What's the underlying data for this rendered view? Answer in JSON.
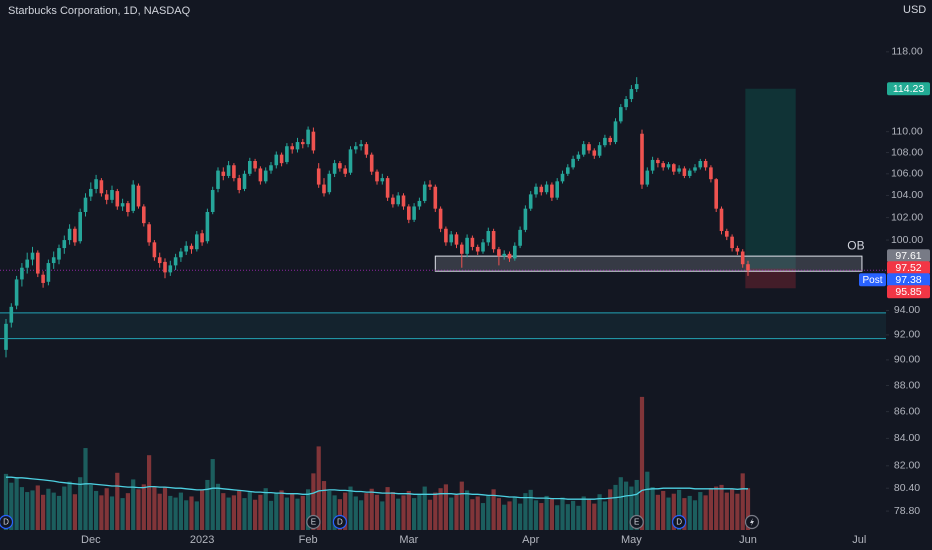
{
  "chart_data": {
    "type": "candlestick",
    "title": "Starbucks Corporation, 1D, NASDAQ",
    "currency": "USD",
    "log_scale": true,
    "ylim": [
      77.5,
      123.5
    ],
    "yticks": [
      {
        "value": 78.8,
        "label": "78.80"
      },
      {
        "value": 80.4,
        "label": "80.40"
      },
      {
        "value": 82,
        "label": "82.00"
      },
      {
        "value": 84,
        "label": "84.00"
      },
      {
        "value": 86,
        "label": "86.00"
      },
      {
        "value": 88,
        "label": "88.00"
      },
      {
        "value": 90,
        "label": "90.00"
      },
      {
        "value": 92,
        "label": "92.00"
      },
      {
        "value": 94,
        "label": "94.00"
      },
      {
        "value": 100,
        "label": "100.00"
      },
      {
        "value": 102,
        "label": "102.00"
      },
      {
        "value": 104,
        "label": "104.00"
      },
      {
        "value": 106,
        "label": "106.00"
      },
      {
        "value": 108,
        "label": "108.00"
      },
      {
        "value": 110,
        "label": "110.00"
      },
      {
        "value": 118,
        "label": "118.00"
      }
    ],
    "up_color": "#26a69a",
    "down_color": "#ef5350",
    "categories": [
      null,
      null,
      null,
      null,
      null,
      null,
      null,
      null,
      null,
      null,
      null,
      null,
      null,
      null,
      null,
      null,
      "Dec",
      null,
      null,
      null,
      null,
      null,
      null,
      null,
      null,
      null,
      null,
      null,
      null,
      null,
      null,
      null,
      null,
      null,
      null,
      null,
      null,
      "2023",
      null,
      null,
      null,
      null,
      null,
      null,
      null,
      null,
      null,
      null,
      null,
      null,
      null,
      null,
      null,
      null,
      null,
      null,
      null,
      "Feb",
      null,
      null,
      null,
      null,
      null,
      null,
      null,
      null,
      null,
      null,
      null,
      null,
      null,
      null,
      null,
      null,
      null,
      null,
      "Mar",
      null,
      null,
      null,
      null,
      null,
      null,
      null,
      null,
      null,
      null,
      null,
      null,
      null,
      null,
      null,
      null,
      null,
      null,
      null,
      null,
      null,
      null,
      "Apr",
      null,
      null,
      null,
      null,
      null,
      null,
      null,
      null,
      null,
      null,
      null,
      null,
      null,
      null,
      null,
      null,
      null,
      null,
      "May",
      null,
      null,
      null,
      null,
      null,
      null,
      null,
      null,
      null,
      null,
      null,
      null,
      null,
      null,
      null,
      null,
      null,
      null,
      null,
      null,
      null,
      "Jun",
      null,
      null,
      null,
      null,
      null,
      null,
      null,
      null,
      null,
      null,
      null,
      null,
      null,
      null,
      null,
      null,
      null,
      null,
      null,
      null,
      "Jul",
      null,
      null,
      null,
      null
    ],
    "ohlc": [
      [
        90.8,
        93.3,
        90.2,
        92.9
      ],
      [
        93.0,
        94.6,
        92.6,
        94.3
      ],
      [
        94.4,
        96.9,
        94.1,
        96.6
      ],
      [
        96.6,
        98.0,
        96.0,
        97.6
      ],
      [
        97.6,
        98.9,
        97.1,
        98.3
      ],
      [
        98.3,
        99.4,
        97.8,
        98.9
      ],
      [
        98.9,
        99.1,
        96.8,
        97.1
      ],
      [
        97.0,
        97.3,
        95.9,
        96.3
      ],
      [
        96.4,
        98.3,
        96.1,
        98.0
      ],
      [
        98.0,
        99.0,
        97.5,
        98.5
      ],
      [
        98.3,
        99.6,
        97.9,
        99.3
      ],
      [
        99.3,
        100.4,
        98.8,
        100.0
      ],
      [
        100.0,
        101.4,
        99.6,
        101.0
      ],
      [
        101.0,
        101.2,
        99.5,
        99.8
      ],
      [
        99.9,
        102.8,
        99.7,
        102.5
      ],
      [
        102.5,
        104.2,
        102.1,
        103.8
      ],
      [
        103.9,
        105.2,
        103.5,
        104.6
      ],
      [
        104.6,
        105.9,
        104.2,
        105.5
      ],
      [
        105.4,
        105.6,
        103.9,
        104.2
      ],
      [
        104.1,
        104.5,
        103.2,
        103.6
      ],
      [
        103.6,
        104.9,
        103.3,
        104.5
      ],
      [
        104.4,
        104.6,
        102.7,
        103.0
      ],
      [
        103.0,
        103.7,
        102.6,
        103.3
      ],
      [
        103.3,
        103.5,
        102.1,
        102.5
      ],
      [
        102.6,
        105.4,
        102.4,
        105.0
      ],
      [
        104.9,
        105.1,
        102.8,
        103.0
      ],
      [
        103.0,
        103.2,
        101.2,
        101.5
      ],
      [
        101.4,
        101.6,
        99.5,
        99.8
      ],
      [
        99.8,
        100.0,
        98.2,
        98.5
      ],
      [
        98.5,
        98.9,
        97.6,
        98.0
      ],
      [
        98.1,
        98.4,
        96.7,
        97.2
      ],
      [
        97.2,
        98.2,
        96.9,
        97.8
      ],
      [
        97.8,
        98.8,
        97.4,
        98.5
      ],
      [
        98.5,
        99.3,
        98.1,
        99.0
      ],
      [
        99.0,
        99.9,
        98.7,
        99.5
      ],
      [
        99.5,
        99.7,
        98.8,
        99.2
      ],
      [
        99.2,
        100.8,
        99.0,
        100.5
      ],
      [
        100.6,
        100.9,
        99.5,
        99.8
      ],
      [
        99.9,
        102.8,
        99.7,
        102.5
      ],
      [
        102.5,
        104.8,
        102.3,
        104.5
      ],
      [
        104.6,
        106.6,
        104.3,
        106.3
      ],
      [
        106.2,
        106.6,
        105.4,
        105.8
      ],
      [
        105.8,
        107.2,
        105.6,
        106.8
      ],
      [
        106.8,
        107.0,
        105.3,
        105.6
      ],
      [
        105.6,
        105.9,
        104.2,
        104.5
      ],
      [
        104.6,
        106.3,
        104.4,
        106.0
      ],
      [
        106.0,
        107.5,
        105.8,
        107.2
      ],
      [
        107.2,
        107.4,
        106.2,
        106.5
      ],
      [
        106.5,
        106.7,
        105.0,
        105.3
      ],
      [
        105.3,
        106.6,
        105.1,
        106.3
      ],
      [
        106.3,
        107.1,
        106.0,
        106.8
      ],
      [
        106.8,
        108.1,
        106.5,
        107.8
      ],
      [
        107.8,
        108.0,
        106.7,
        107.0
      ],
      [
        107.1,
        108.9,
        106.9,
        108.6
      ],
      [
        108.6,
        108.9,
        107.9,
        108.3
      ],
      [
        108.3,
        109.4,
        108.0,
        109.0
      ],
      [
        109.0,
        109.3,
        108.4,
        108.8
      ],
      [
        108.8,
        110.5,
        108.5,
        110.2
      ],
      [
        110.0,
        110.4,
        107.9,
        108.2
      ],
      [
        106.5,
        107.0,
        104.7,
        105.0
      ],
      [
        105.0,
        105.6,
        103.9,
        104.2
      ],
      [
        104.3,
        106.3,
        104.1,
        106.0
      ],
      [
        106.0,
        107.3,
        105.7,
        107.0
      ],
      [
        107.0,
        107.2,
        106.2,
        106.5
      ],
      [
        106.5,
        106.8,
        105.7,
        106.0
      ],
      [
        106.1,
        108.6,
        105.9,
        108.3
      ],
      [
        108.3,
        109.0,
        107.9,
        108.6
      ],
      [
        108.6,
        109.2,
        108.2,
        108.8
      ],
      [
        108.8,
        109.0,
        107.5,
        107.8
      ],
      [
        107.8,
        108.0,
        105.9,
        106.2
      ],
      [
        106.2,
        106.4,
        105.0,
        105.3
      ],
      [
        105.3,
        106.0,
        105.0,
        105.6
      ],
      [
        105.6,
        105.8,
        103.5,
        103.8
      ],
      [
        103.8,
        104.1,
        102.9,
        103.2
      ],
      [
        103.2,
        104.3,
        103.0,
        104.0
      ],
      [
        104.0,
        104.2,
        102.7,
        103.0
      ],
      [
        103.0,
        103.2,
        101.5,
        101.8
      ],
      [
        101.8,
        103.3,
        101.6,
        103.0
      ],
      [
        103.0,
        103.8,
        102.7,
        103.5
      ],
      [
        103.5,
        105.3,
        103.3,
        105.0
      ],
      [
        105.0,
        105.4,
        104.5,
        104.8
      ],
      [
        104.8,
        105.0,
        102.5,
        102.8
      ],
      [
        102.8,
        103.0,
        100.7,
        101.0
      ],
      [
        101.0,
        101.2,
        99.5,
        99.8
      ],
      [
        99.8,
        100.8,
        99.5,
        100.5
      ],
      [
        100.5,
        100.7,
        99.3,
        99.6
      ],
      [
        99.6,
        99.8,
        97.6,
        98.8
      ],
      [
        98.8,
        100.5,
        98.5,
        100.2
      ],
      [
        100.2,
        100.4,
        99.1,
        99.4
      ],
      [
        99.4,
        99.6,
        98.7,
        99.0
      ],
      [
        99.0,
        100.1,
        98.8,
        99.8
      ],
      [
        99.8,
        101.1,
        99.5,
        100.8
      ],
      [
        100.8,
        101.0,
        98.9,
        99.2
      ],
      [
        99.2,
        99.4,
        97.8,
        98.6
      ],
      [
        98.6,
        99.1,
        98.3,
        98.8
      ],
      [
        98.8,
        99.0,
        98.1,
        98.4
      ],
      [
        98.4,
        99.8,
        98.2,
        99.5
      ],
      [
        99.5,
        101.2,
        99.3,
        100.9
      ],
      [
        100.9,
        103.1,
        100.7,
        102.8
      ],
      [
        102.8,
        104.4,
        102.6,
        104.1
      ],
      [
        104.1,
        105.1,
        103.8,
        104.8
      ],
      [
        104.8,
        105.0,
        104.0,
        104.3
      ],
      [
        104.3,
        105.3,
        104.1,
        105.0
      ],
      [
        105.0,
        105.2,
        103.5,
        103.8
      ],
      [
        103.8,
        105.6,
        103.6,
        105.3
      ],
      [
        105.3,
        106.3,
        105.1,
        106.0
      ],
      [
        106.0,
        106.9,
        105.8,
        106.6
      ],
      [
        106.6,
        107.7,
        106.4,
        107.4
      ],
      [
        107.4,
        108.1,
        107.2,
        107.8
      ],
      [
        107.8,
        109.1,
        107.6,
        108.8
      ],
      [
        108.8,
        109.0,
        107.9,
        108.2
      ],
      [
        108.2,
        108.4,
        107.4,
        107.7
      ],
      [
        107.7,
        109.0,
        107.5,
        108.7
      ],
      [
        108.7,
        109.7,
        108.5,
        109.4
      ],
      [
        109.4,
        109.6,
        108.7,
        109.0
      ],
      [
        109.0,
        111.3,
        108.8,
        111.0
      ],
      [
        111.0,
        112.7,
        110.8,
        112.4
      ],
      [
        112.4,
        113.5,
        112.1,
        113.2
      ],
      [
        113.2,
        114.6,
        112.9,
        114.2
      ],
      [
        114.2,
        115.4,
        113.9,
        114.7
      ],
      [
        109.8,
        110.2,
        104.6,
        105.0
      ],
      [
        105.0,
        106.6,
        104.8,
        106.3
      ],
      [
        106.3,
        107.6,
        106.0,
        107.3
      ],
      [
        107.3,
        107.5,
        106.6,
        107.0
      ],
      [
        107.0,
        107.2,
        106.3,
        106.6
      ],
      [
        106.6,
        107.1,
        106.4,
        106.9
      ],
      [
        106.9,
        107.0,
        105.9,
        106.2
      ],
      [
        106.2,
        106.8,
        106.0,
        106.5
      ],
      [
        106.5,
        106.7,
        105.6,
        105.8
      ],
      [
        105.8,
        106.5,
        105.6,
        106.3
      ],
      [
        106.3,
        106.9,
        106.1,
        106.6
      ],
      [
        106.6,
        107.4,
        106.4,
        107.2
      ],
      [
        107.2,
        107.4,
        106.3,
        106.6
      ],
      [
        106.6,
        106.8,
        105.2,
        105.5
      ],
      [
        105.5,
        105.6,
        102.5,
        102.8
      ],
      [
        102.8,
        103.0,
        100.5,
        100.8
      ],
      [
        100.8,
        101.0,
        100.0,
        100.3
      ],
      [
        100.3,
        100.5,
        99.0,
        99.3
      ],
      [
        99.3,
        99.5,
        98.7,
        99.0
      ],
      [
        99.0,
        99.2,
        97.6,
        97.9
      ],
      [
        97.9,
        98.2,
        96.9,
        97.38
      ],
      null,
      null,
      null,
      null,
      null,
      null,
      null,
      null,
      null,
      null,
      null,
      null,
      null,
      null,
      null,
      null,
      null,
      null,
      null,
      null,
      null,
      null,
      null,
      null,
      null
    ],
    "volume_ylim": [
      0,
      40
    ],
    "volume": [
      10.2,
      8.6,
      9.4,
      7.8,
      6.9,
      7.2,
      8.1,
      6.4,
      7.5,
      6.8,
      6.2,
      7.9,
      8.8,
      6.5,
      9.6,
      14.9,
      8.2,
      7.1,
      6.3,
      7.6,
      6.1,
      10.4,
      5.8,
      6.7,
      9.2,
      7.4,
      8.3,
      13.6,
      7.9,
      6.6,
      7.8,
      6.2,
      5.9,
      6.8,
      5.4,
      6.1,
      5.2,
      7.3,
      9.1,
      12.9,
      8.4,
      6.7,
      5.9,
      6.3,
      7.2,
      5.8,
      6.9,
      5.5,
      6.4,
      7.6,
      5.3,
      6.8,
      7.2,
      5.9,
      6.6,
      5.7,
      6.2,
      7.4,
      10.3,
      15.2,
      8.9,
      7.1,
      6.3,
      5.6,
      6.8,
      7.9,
      6.1,
      5.4,
      6.7,
      7.5,
      6.4,
      5.2,
      7.8,
      6.9,
      5.7,
      6.3,
      7.1,
      5.8,
      6.5,
      7.9,
      5.5,
      6.8,
      7.6,
      8.3,
      5.9,
      6.4,
      8.8,
      7.2,
      5.6,
      6.1,
      4.9,
      6.3,
      7.4,
      5.8,
      4.6,
      5.2,
      6.1,
      4.8,
      6.7,
      7.3,
      5.4,
      4.9,
      6.2,
      5.7,
      4.5,
      5.9,
      4.7,
      5.3,
      4.4,
      6.1,
      5.6,
      4.8,
      6.5,
      5.2,
      7.4,
      8.2,
      9.6,
      8.8,
      7.9,
      9.1,
      24.2,
      10.6,
      7.8,
      6.4,
      7.1,
      5.9,
      6.6,
      7.3,
      5.8,
      6.2,
      5.4,
      6.9,
      6.3,
      7.6,
      7.9,
      8.2,
      6.8,
      7.5,
      6.6,
      10.3,
      7.6,
      null,
      null,
      null,
      null,
      null,
      null,
      null,
      null,
      null,
      null,
      null,
      null,
      null,
      null,
      null,
      null,
      null,
      null,
      null,
      null,
      null,
      null,
      null,
      null,
      null
    ],
    "volume_ma_color": "#4dd0e1",
    "volume_ma": [
      9.6,
      9.6,
      9.5,
      9.5,
      9.4,
      9.3,
      9.2,
      9.1,
      9.0,
      8.9,
      8.7,
      8.6,
      8.5,
      8.4,
      8.3,
      8.4,
      8.4,
      8.3,
      8.2,
      8.1,
      8.0,
      8.0,
      7.9,
      7.8,
      7.8,
      7.7,
      7.7,
      7.9,
      7.9,
      7.8,
      7.8,
      7.7,
      7.6,
      7.6,
      7.5,
      7.4,
      7.3,
      7.3,
      7.4,
      7.6,
      7.6,
      7.5,
      7.4,
      7.3,
      7.2,
      7.1,
      7.0,
      6.9,
      6.9,
      6.8,
      6.8,
      6.7,
      6.7,
      6.6,
      6.6,
      6.6,
      6.5,
      6.5,
      6.7,
      7.1,
      7.2,
      7.3,
      7.3,
      7.2,
      7.2,
      7.1,
      7.0,
      7.0,
      6.9,
      6.9,
      6.8,
      6.7,
      6.7,
      6.7,
      6.6,
      6.6,
      6.6,
      6.5,
      6.5,
      6.5,
      6.5,
      6.5,
      6.6,
      6.6,
      6.6,
      6.5,
      6.6,
      6.6,
      6.5,
      6.5,
      6.4,
      6.3,
      6.3,
      6.2,
      6.1,
      6.0,
      6.0,
      5.9,
      5.9,
      5.9,
      5.8,
      5.8,
      5.8,
      5.7,
      5.7,
      5.7,
      5.6,
      5.6,
      5.6,
      5.6,
      5.6,
      5.6,
      5.7,
      5.7,
      5.8,
      5.9,
      6.0,
      6.2,
      6.3,
      6.5,
      7.2,
      7.4,
      7.5,
      7.5,
      7.6,
      7.6,
      7.6,
      7.6,
      7.6,
      7.6,
      7.5,
      7.5,
      7.5,
      7.5,
      7.5,
      7.5,
      7.5,
      7.5,
      7.4,
      7.5,
      7.5,
      null,
      null,
      null,
      null,
      null,
      null,
      null,
      null,
      null,
      null,
      null,
      null,
      null,
      null,
      null,
      null,
      null,
      null,
      null,
      null,
      null,
      null,
      null,
      null,
      null
    ],
    "events": [
      {
        "label": "D",
        "index": 0
      },
      {
        "label": "E",
        "index": 58
      },
      {
        "label": "D",
        "index": 63
      },
      {
        "label": "E",
        "index": 119
      },
      {
        "label": "D",
        "index": 127
      }
    ],
    "zone": {
      "top": 93.8,
      "bottom": 91.7,
      "color": "#26c6da"
    },
    "ob_zone": {
      "label": "OB",
      "top": 98.6,
      "bottom": 97.3,
      "from": 81,
      "to": 161.5
    },
    "position": {
      "from": 139.5,
      "to": 149
    },
    "price_labels": [
      {
        "value": 114.23,
        "color": "#22ab94"
      },
      {
        "value": 97.61,
        "color": "#787b86"
      },
      {
        "value": 97.52,
        "color": "#f23645"
      },
      {
        "value": 97.38,
        "color": "#2962ff",
        "tag": "Post"
      },
      {
        "value": 95.85,
        "color": "#f23645"
      }
    ]
  }
}
